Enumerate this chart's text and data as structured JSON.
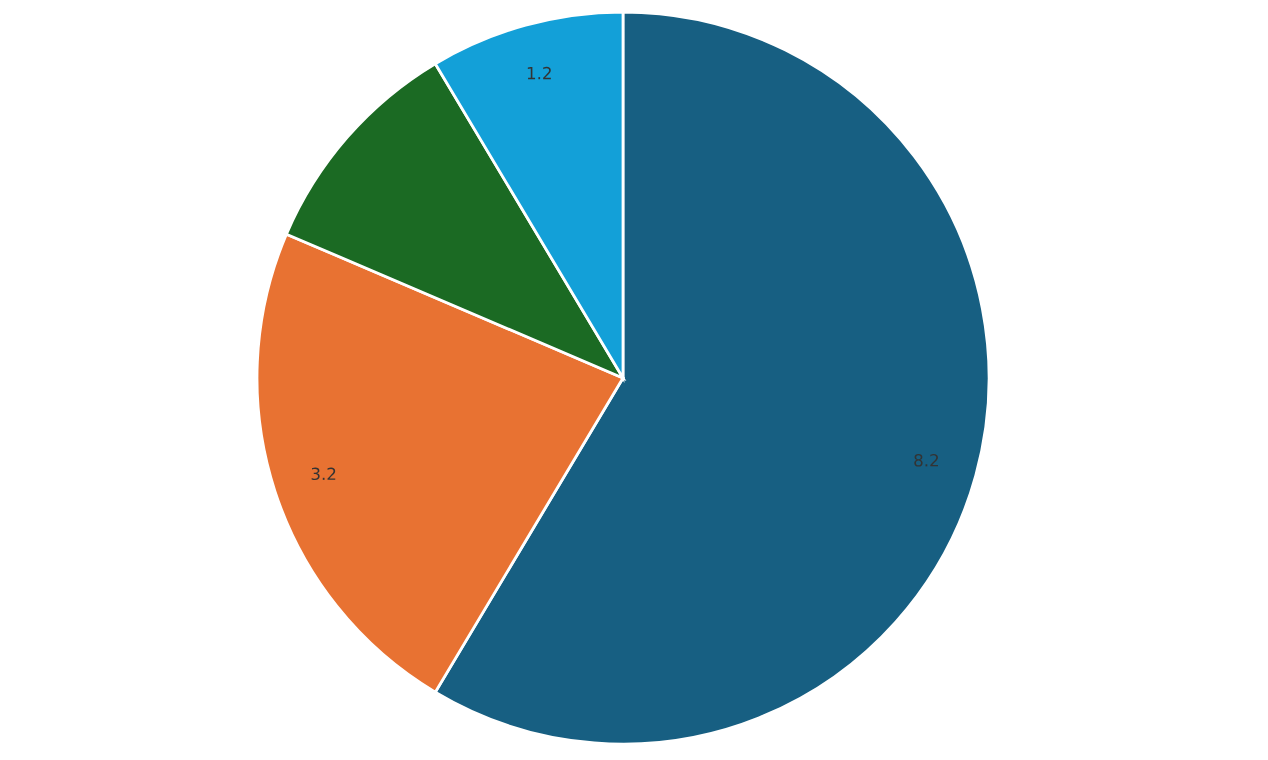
{
  "chart_data": {
    "type": "pie",
    "categories": [
      null,
      null,
      null,
      null
    ],
    "values": [
      8.2,
      3.2,
      1.4,
      1.2
    ],
    "colors": [
      "#175f82",
      "#e87232",
      "#1b6a23",
      "#13a0d8"
    ],
    "value_labels": [
      "8.2",
      "3.2",
      null,
      "1.2"
    ]
  }
}
